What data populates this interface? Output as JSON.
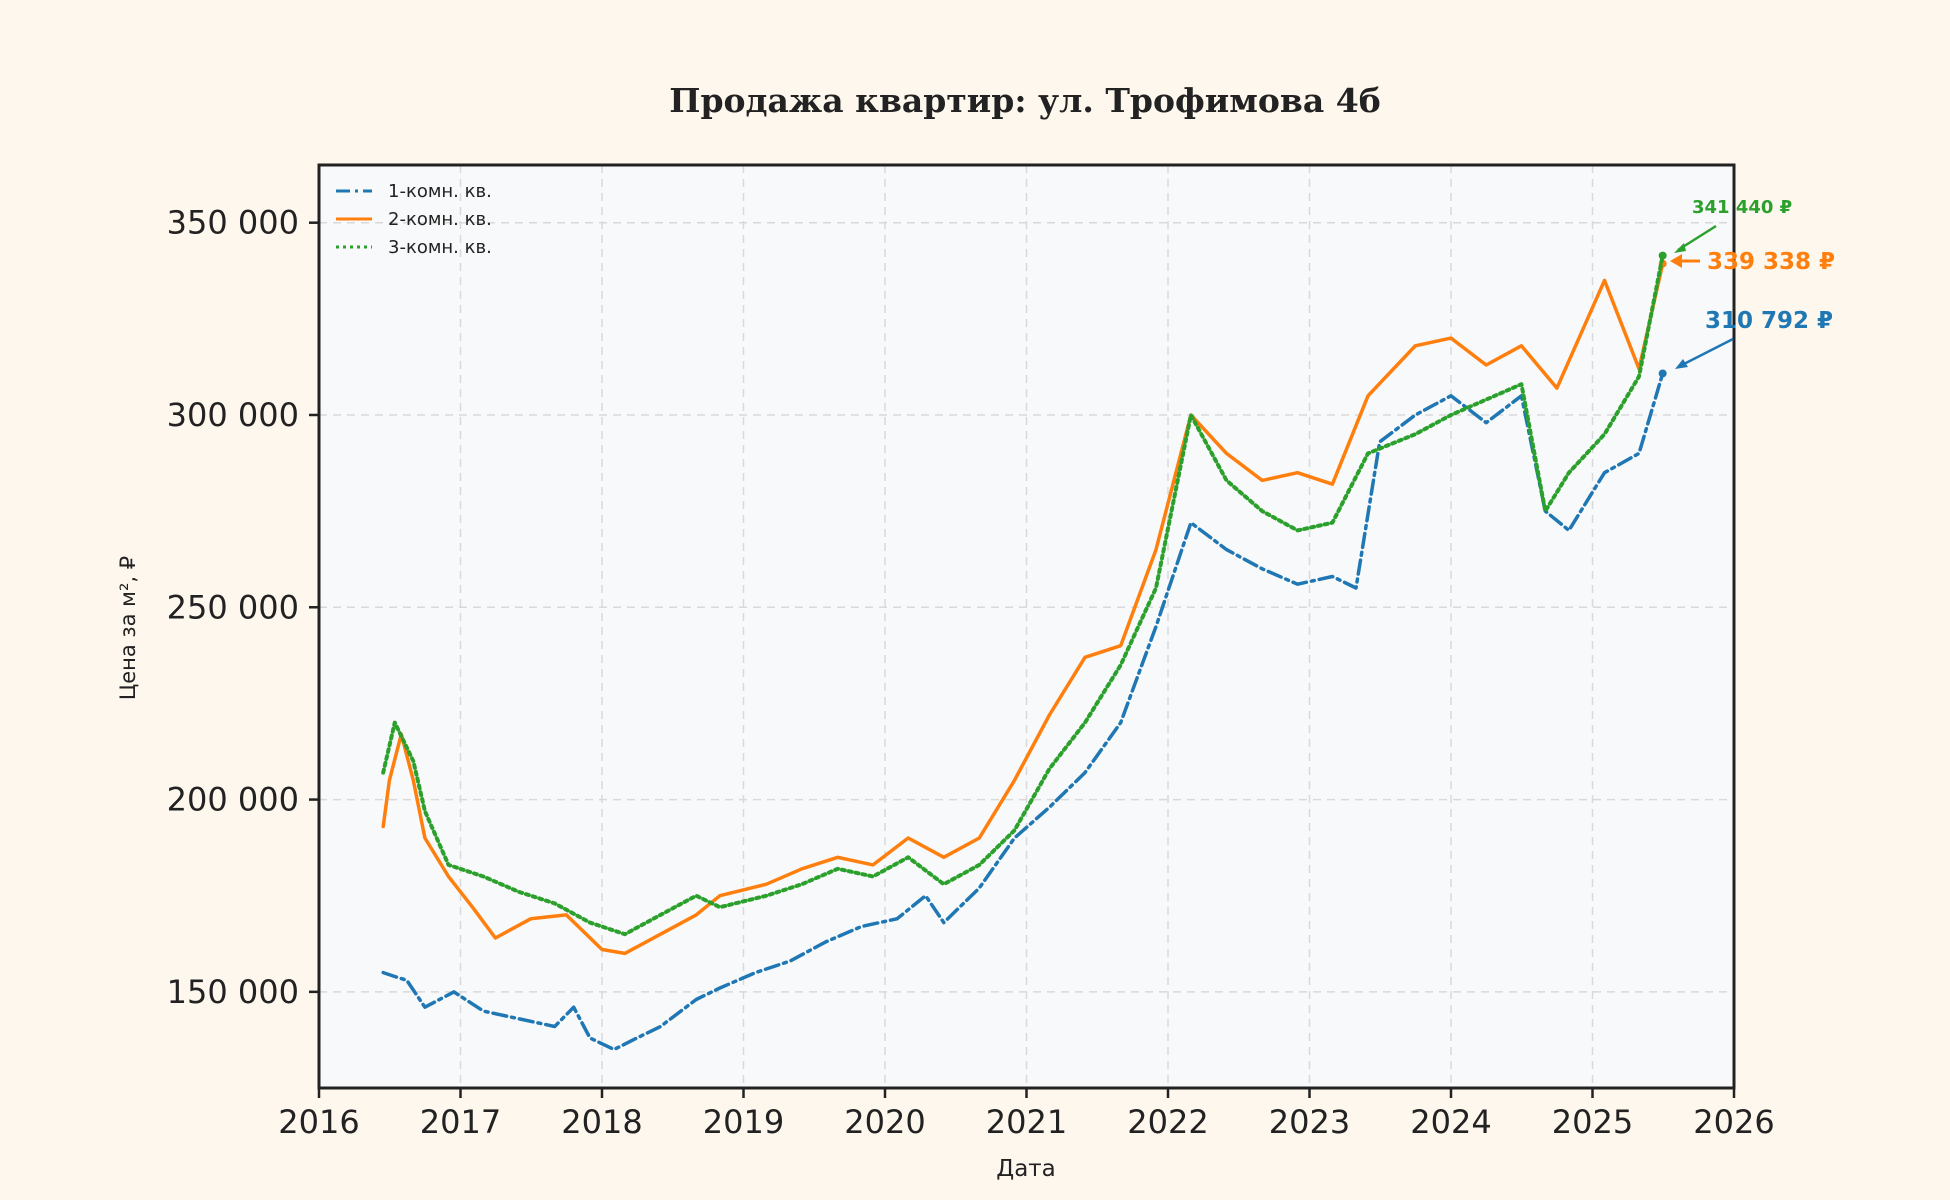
{
  "chart_data": {
    "type": "line",
    "title": "Продажа квартир: ул. Трофимова 4б",
    "xlabel": "Дата",
    "ylabel": "Цена за м², ₽",
    "xlim": [
      "2016-01-01",
      "2026-01-01"
    ],
    "ylim": [
      125000,
      365000
    ],
    "x_ticks": [
      "2016",
      "2017",
      "2018",
      "2019",
      "2020",
      "2021",
      "2022",
      "2023",
      "2024",
      "2025",
      "2026"
    ],
    "y_ticks": [
      150000,
      200000,
      250000,
      300000,
      350000
    ],
    "y_tick_labels": [
      "150 000",
      "200 000",
      "250 000",
      "300 000",
      "350 000"
    ],
    "grid": true,
    "legend_position": "top-left",
    "series": [
      {
        "name": "1-комн. кв.",
        "color": "#1f77b4",
        "style": "dashdot",
        "points": [
          [
            "2016-06-15",
            155000
          ],
          [
            "2016-07-15",
            154000
          ],
          [
            "2016-08-15",
            153000
          ],
          [
            "2016-10-01",
            146000
          ],
          [
            "2016-12-15",
            150000
          ],
          [
            "2017-03-01",
            145000
          ],
          [
            "2017-06-01",
            143000
          ],
          [
            "2017-09-01",
            141000
          ],
          [
            "2017-10-20",
            146000
          ],
          [
            "2017-12-01",
            138000
          ],
          [
            "2018-02-01",
            135000
          ],
          [
            "2018-04-01",
            138000
          ],
          [
            "2018-06-01",
            141000
          ],
          [
            "2018-09-01",
            148000
          ],
          [
            "2018-11-01",
            151000
          ],
          [
            "2019-02-01",
            155000
          ],
          [
            "2019-05-01",
            158000
          ],
          [
            "2019-08-01",
            163000
          ],
          [
            "2019-11-01",
            167000
          ],
          [
            "2020-02-01",
            169000
          ],
          [
            "2020-04-15",
            175000
          ],
          [
            "2020-06-01",
            168000
          ],
          [
            "2020-09-01",
            177000
          ],
          [
            "2020-12-01",
            190000
          ],
          [
            "2021-03-01",
            198000
          ],
          [
            "2021-06-01",
            207000
          ],
          [
            "2021-09-01",
            220000
          ],
          [
            "2021-12-01",
            245000
          ],
          [
            "2022-03-01",
            272000
          ],
          [
            "2022-06-01",
            265000
          ],
          [
            "2022-09-01",
            260000
          ],
          [
            "2022-12-01",
            256000
          ],
          [
            "2023-03-01",
            258000
          ],
          [
            "2023-05-01",
            255000
          ],
          [
            "2023-07-01",
            293000
          ],
          [
            "2023-10-01",
            300000
          ],
          [
            "2024-01-01",
            305000
          ],
          [
            "2024-04-01",
            298000
          ],
          [
            "2024-07-01",
            305000
          ],
          [
            "2024-09-01",
            275000
          ],
          [
            "2024-11-01",
            270000
          ],
          [
            "2025-02-01",
            285000
          ],
          [
            "2025-05-01",
            290000
          ],
          [
            "2025-07-01",
            310792
          ]
        ]
      },
      {
        "name": "2-комн. кв.",
        "color": "#ff7f0e",
        "style": "solid",
        "points": [
          [
            "2016-06-15",
            193000
          ],
          [
            "2016-07-01",
            205000
          ],
          [
            "2016-08-01",
            217000
          ],
          [
            "2016-09-01",
            205000
          ],
          [
            "2016-10-01",
            190000
          ],
          [
            "2016-12-01",
            180000
          ],
          [
            "2017-02-01",
            172000
          ],
          [
            "2017-04-01",
            164000
          ],
          [
            "2017-07-01",
            169000
          ],
          [
            "2017-10-01",
            170000
          ],
          [
            "2018-01-01",
            161000
          ],
          [
            "2018-03-01",
            160000
          ],
          [
            "2018-06-01",
            165000
          ],
          [
            "2018-09-01",
            170000
          ],
          [
            "2018-11-01",
            175000
          ],
          [
            "2019-03-01",
            178000
          ],
          [
            "2019-06-01",
            182000
          ],
          [
            "2019-09-01",
            185000
          ],
          [
            "2019-12-01",
            183000
          ],
          [
            "2020-03-01",
            190000
          ],
          [
            "2020-06-01",
            185000
          ],
          [
            "2020-09-01",
            190000
          ],
          [
            "2020-12-01",
            205000
          ],
          [
            "2021-03-01",
            222000
          ],
          [
            "2021-06-01",
            237000
          ],
          [
            "2021-09-01",
            240000
          ],
          [
            "2021-12-01",
            265000
          ],
          [
            "2022-03-01",
            300000
          ],
          [
            "2022-06-01",
            290000
          ],
          [
            "2022-09-01",
            283000
          ],
          [
            "2022-12-01",
            285000
          ],
          [
            "2023-03-01",
            282000
          ],
          [
            "2023-06-01",
            305000
          ],
          [
            "2023-10-01",
            318000
          ],
          [
            "2024-01-01",
            320000
          ],
          [
            "2024-04-01",
            313000
          ],
          [
            "2024-07-01",
            318000
          ],
          [
            "2024-10-01",
            307000
          ],
          [
            "2025-02-01",
            335000
          ],
          [
            "2025-05-01",
            312000
          ],
          [
            "2025-07-01",
            339338
          ]
        ]
      },
      {
        "name": "3-комн. кв.",
        "color": "#2ca02c",
        "style": "dotted",
        "points": [
          [
            "2016-06-15",
            207000
          ],
          [
            "2016-07-15",
            220000
          ],
          [
            "2016-09-01",
            210000
          ],
          [
            "2016-10-01",
            197000
          ],
          [
            "2016-12-01",
            183000
          ],
          [
            "2017-03-01",
            180000
          ],
          [
            "2017-06-01",
            176000
          ],
          [
            "2017-09-01",
            173000
          ],
          [
            "2017-12-01",
            168000
          ],
          [
            "2018-03-01",
            165000
          ],
          [
            "2018-06-01",
            170000
          ],
          [
            "2018-09-01",
            175000
          ],
          [
            "2018-11-01",
            172000
          ],
          [
            "2019-03-01",
            175000
          ],
          [
            "2019-06-01",
            178000
          ],
          [
            "2019-09-01",
            182000
          ],
          [
            "2019-12-01",
            180000
          ],
          [
            "2020-03-01",
            185000
          ],
          [
            "2020-06-01",
            178000
          ],
          [
            "2020-09-01",
            183000
          ],
          [
            "2020-12-01",
            192000
          ],
          [
            "2021-03-01",
            208000
          ],
          [
            "2021-06-01",
            220000
          ],
          [
            "2021-09-01",
            235000
          ],
          [
            "2021-12-01",
            255000
          ],
          [
            "2022-03-01",
            300000
          ],
          [
            "2022-06-01",
            283000
          ],
          [
            "2022-09-01",
            275000
          ],
          [
            "2022-12-01",
            270000
          ],
          [
            "2023-03-01",
            272000
          ],
          [
            "2023-06-01",
            290000
          ],
          [
            "2023-10-01",
            295000
          ],
          [
            "2024-01-01",
            300000
          ],
          [
            "2024-04-01",
            304000
          ],
          [
            "2024-07-01",
            308000
          ],
          [
            "2024-09-01",
            275000
          ],
          [
            "2024-11-01",
            285000
          ],
          [
            "2025-02-01",
            295000
          ],
          [
            "2025-05-01",
            310000
          ],
          [
            "2025-07-01",
            341440
          ]
        ]
      }
    ],
    "annotations": [
      {
        "text": "341 440 ₽",
        "series": "3-комн. кв.",
        "value": 341440
      },
      {
        "text": "339 338 ₽",
        "series": "2-комн. кв.",
        "value": 339338
      },
      {
        "text": "310 792 ₽",
        "series": "1-комн. кв.",
        "value": 310792
      }
    ]
  }
}
